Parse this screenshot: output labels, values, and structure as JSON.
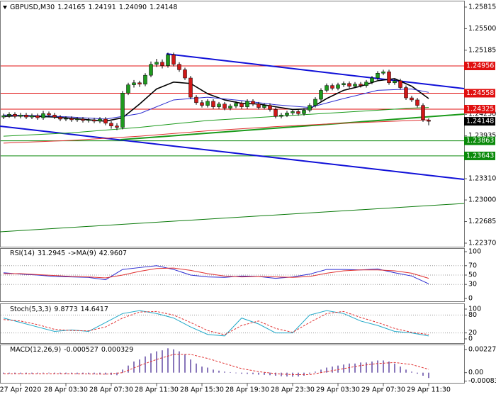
{
  "chart_data": [
    {
      "type": "candlestick",
      "title": "GBPUSD,M30",
      "last_bar_labels": [
        "1.24165",
        "1.24191",
        "1.24090",
        "1.24148"
      ],
      "categories": [
        null,
        null,
        null,
        "27 Apr 2020",
        null,
        null,
        null,
        null,
        null,
        null,
        null,
        "28 Apr 03:30",
        null,
        null,
        null,
        null,
        null,
        null,
        null,
        "28 Apr 07:30",
        null,
        null,
        null,
        null,
        null,
        null,
        null,
        "28 Apr 11:30",
        null,
        null,
        null,
        null,
        null,
        null,
        null,
        "28 Apr 15:30",
        null,
        null,
        null,
        null,
        null,
        null,
        null,
        "28 Apr 19:30",
        null,
        null,
        null,
        null,
        null,
        null,
        null,
        "28 Apr 23:30",
        null,
        null,
        null,
        null,
        null,
        null,
        null,
        "29 Apr 03:30",
        null,
        null,
        null,
        null,
        null,
        null,
        null,
        "29 Apr 07:30",
        null,
        null,
        null,
        null,
        null,
        null,
        null,
        "29 Apr 11:30"
      ],
      "open": [
        1.2421,
        1.2423,
        1.2425,
        1.2422,
        1.2424,
        1.2421,
        1.2423,
        1.242,
        1.2426,
        1.2424,
        1.2421,
        1.2418,
        1.2419,
        1.2417,
        1.2418,
        1.2416,
        1.2417,
        1.2415,
        1.2418,
        1.2412,
        1.2408,
        1.2406,
        1.2456,
        1.2468,
        1.2471,
        1.2469,
        1.2482,
        1.2498,
        1.2501,
        1.2496,
        1.2512,
        1.2498,
        1.249,
        1.2478,
        1.245,
        1.2442,
        1.2438,
        1.2444,
        1.2436,
        1.244,
        1.2434,
        1.2437,
        1.2441,
        1.2436,
        1.2444,
        1.244,
        1.2435,
        1.2438,
        1.2432,
        1.2422,
        1.2424,
        1.2427,
        1.2429,
        1.2426,
        1.2431,
        1.2438,
        1.2447,
        1.246,
        1.2467,
        1.2463,
        1.2468,
        1.247,
        1.2466,
        1.2469,
        1.2467,
        1.2472,
        1.2478,
        1.2485,
        1.2487,
        1.2471,
        1.2474,
        1.2464,
        1.2449,
        1.2446,
        1.2438,
        1.24165
      ],
      "high": [
        1.2426,
        1.2428,
        1.2428,
        1.2427,
        1.2427,
        1.2426,
        1.2426,
        1.243,
        1.2429,
        1.2427,
        1.2424,
        1.2422,
        1.2422,
        1.2421,
        1.2421,
        1.242,
        1.242,
        1.2421,
        1.2421,
        1.2415,
        1.2412,
        1.2459,
        1.2471,
        1.2475,
        1.2474,
        1.2485,
        1.2502,
        1.2506,
        1.2505,
        1.2515,
        1.2515,
        1.2501,
        1.2493,
        1.2481,
        1.2453,
        1.2446,
        1.2447,
        1.2447,
        1.2443,
        1.2443,
        1.244,
        1.2444,
        1.2444,
        1.2447,
        1.2447,
        1.2443,
        1.2441,
        1.2441,
        1.2435,
        1.2427,
        1.243,
        1.2432,
        1.2432,
        1.2434,
        1.2441,
        1.245,
        1.2463,
        1.247,
        1.247,
        1.2471,
        1.2473,
        1.2473,
        1.2472,
        1.2472,
        1.2475,
        1.2481,
        1.2488,
        1.249,
        1.249,
        1.2477,
        1.2477,
        1.2467,
        1.2452,
        1.2449,
        1.2441,
        1.24191
      ],
      "low": [
        1.2418,
        1.242,
        1.2419,
        1.2419,
        1.2418,
        1.2418,
        1.2417,
        1.2417,
        1.2421,
        1.2418,
        1.2415,
        1.2415,
        1.2414,
        1.2414,
        1.2413,
        1.2413,
        1.2412,
        1.2412,
        1.2409,
        1.2404,
        1.2402,
        1.2403,
        1.2453,
        1.2464,
        1.2465,
        1.2466,
        1.2479,
        1.2494,
        1.2492,
        1.2493,
        1.2495,
        1.2487,
        1.2475,
        1.2447,
        1.2439,
        1.2435,
        1.2435,
        1.2433,
        1.2433,
        1.2431,
        1.2431,
        1.2434,
        1.2433,
        1.2433,
        1.2437,
        1.2432,
        1.2432,
        1.2429,
        1.2419,
        1.2419,
        1.2421,
        1.2424,
        1.2423,
        1.2423,
        1.2428,
        1.2435,
        1.2444,
        1.2457,
        1.246,
        1.246,
        1.2465,
        1.2463,
        1.2463,
        1.2464,
        1.2464,
        1.2469,
        1.2475,
        1.2482,
        1.2468,
        1.2468,
        1.2461,
        1.2446,
        1.2443,
        1.2435,
        1.2414,
        1.2409
      ],
      "close": [
        1.2423,
        1.2425,
        1.2422,
        1.2424,
        1.2421,
        1.2423,
        1.242,
        1.2426,
        1.2424,
        1.2421,
        1.2418,
        1.2419,
        1.2417,
        1.2418,
        1.2416,
        1.2417,
        1.2415,
        1.2418,
        1.2412,
        1.2408,
        1.2406,
        1.2456,
        1.2468,
        1.2471,
        1.2469,
        1.2482,
        1.2498,
        1.2501,
        1.2496,
        1.2512,
        1.2498,
        1.249,
        1.2478,
        1.245,
        1.2442,
        1.2438,
        1.2444,
        1.2436,
        1.244,
        1.2434,
        1.2437,
        1.2441,
        1.2436,
        1.2444,
        1.244,
        1.2435,
        1.2438,
        1.2432,
        1.2422,
        1.2424,
        1.2427,
        1.2429,
        1.2426,
        1.2431,
        1.2438,
        1.2447,
        1.246,
        1.2467,
        1.2463,
        1.2468,
        1.247,
        1.2466,
        1.2469,
        1.2467,
        1.2472,
        1.2478,
        1.2485,
        1.2487,
        1.2471,
        1.2474,
        1.2464,
        1.2449,
        1.2446,
        1.2438,
        1.2417,
        1.24148
      ],
      "up_color": "#1e9a1e",
      "down_color": "#d01818",
      "current_color": "#000000",
      "ylim": [
        1.22318,
        1.25887
      ],
      "yticks": [
        1.25815,
        {
          "value": 1.255,
          "label": "1.25500"
        },
        1.25185,
        {
          "value": 1.2425,
          "label": "1.24250"
        },
        1.23935,
        {
          "value": 1.2331,
          "label": "1.23310"
        },
        {
          "value": 1.23,
          "label": "1.23000"
        },
        1.22685,
        {
          "value": 1.2237,
          "label": "1.22370"
        }
      ],
      "levels": [
        {
          "value": 1.24956,
          "color": "#e01010"
        },
        {
          "value": 1.24558,
          "color": "#e01010"
        },
        {
          "value": 1.24325,
          "color": "#e01010"
        },
        {
          "value": 1.23863,
          "color": "#0a8a0a"
        },
        {
          "value": 1.23643,
          "color": "#0a8a0a"
        }
      ],
      "lines": [
        {
          "color": "#000000",
          "x": [
            0,
            3,
            6,
            9,
            12,
            15,
            18,
            21,
            24,
            27,
            30,
            33,
            36,
            39,
            42,
            45,
            48,
            51,
            54,
            57,
            60,
            63,
            66,
            69,
            72,
            75
          ],
          "values": [
            1.2422,
            1.2423,
            1.2422,
            1.2421,
            1.2419,
            1.2417,
            1.2415,
            1.242,
            1.244,
            1.2462,
            1.2472,
            1.247,
            1.2455,
            1.2446,
            1.2441,
            1.244,
            1.2436,
            1.2432,
            1.2433,
            1.2448,
            1.246,
            1.2466,
            1.2474,
            1.2477,
            1.2466,
            1.2448
          ]
        },
        {
          "color": "#2a2ad0",
          "x": [
            0,
            6,
            12,
            18,
            24,
            30,
            36,
            42,
            48,
            54,
            60,
            66,
            72,
            75
          ],
          "values": [
            1.2424,
            1.2423,
            1.2421,
            1.2418,
            1.2426,
            1.2446,
            1.245,
            1.2445,
            1.2439,
            1.2435,
            1.2448,
            1.246,
            1.2462,
            1.2457
          ]
        },
        {
          "color": "#1a9a1a",
          "x": [
            0,
            12,
            24,
            36,
            48,
            60,
            72,
            75
          ],
          "values": [
            1.2393,
            1.2398,
            1.2406,
            1.2416,
            1.2422,
            1.2428,
            1.2434,
            1.2435
          ]
        },
        {
          "color": "#e03030",
          "x": [
            0,
            12,
            24,
            36,
            48,
            60,
            72,
            75
          ],
          "values": [
            1.2383,
            1.2387,
            1.2393,
            1.2401,
            1.2407,
            1.2412,
            1.2416,
            1.2417
          ]
        }
      ]
    },
    {
      "type": "line",
      "title": "RSI(14)",
      "ylim": [
        0,
        100
      ],
      "yticks": [
        0,
        30,
        50,
        70,
        100
      ],
      "grid": true,
      "series": [
        {
          "color": "#2a2ad0",
          "x": [
            0,
            3,
            6,
            9,
            12,
            15,
            18,
            21,
            24,
            27,
            30,
            33,
            36,
            39,
            42,
            45,
            48,
            51,
            54,
            57,
            60,
            63,
            66,
            69,
            72,
            75
          ],
          "values": [
            55,
            52,
            50,
            47,
            46,
            45,
            40,
            62,
            66,
            70,
            62,
            50,
            46,
            45,
            48,
            47,
            43,
            46,
            52,
            62,
            62,
            61,
            63,
            55,
            48,
            31.2945
          ]
        },
        {
          "name": "->MA(9)",
          "color": "#e03030",
          "x": [
            0,
            3,
            6,
            9,
            12,
            15,
            18,
            21,
            24,
            27,
            30,
            33,
            36,
            39,
            42,
            45,
            48,
            51,
            54,
            57,
            60,
            63,
            66,
            69,
            72,
            75
          ],
          "values": [
            53,
            53,
            51,
            49,
            47,
            46,
            44,
            50,
            58,
            64,
            65,
            60,
            53,
            48,
            46,
            47,
            46,
            45,
            47,
            54,
            59,
            61,
            61,
            59,
            54,
            42.9607
          ]
        }
      ]
    },
    {
      "type": "line",
      "title": "Stoch(5,3,3)",
      "ylim": [
        0,
        100
      ],
      "yticks": [
        0,
        20,
        80,
        100
      ],
      "grid": true,
      "series": [
        {
          "color": "#20a8c8",
          "x": [
            0,
            3,
            6,
            9,
            12,
            15,
            18,
            21,
            24,
            27,
            30,
            33,
            36,
            39,
            42,
            45,
            48,
            51,
            54,
            57,
            60,
            63,
            66,
            69,
            72,
            75
          ],
          "values": [
            70,
            55,
            40,
            25,
            30,
            25,
            55,
            85,
            95,
            85,
            70,
            40,
            15,
            10,
            70,
            50,
            20,
            20,
            80,
            95,
            85,
            60,
            45,
            25,
            20,
            9.8773
          ]
        },
        {
          "color": "#e03030",
          "dash": true,
          "x": [
            0,
            3,
            6,
            9,
            12,
            15,
            18,
            21,
            24,
            27,
            30,
            33,
            36,
            39,
            42,
            45,
            48,
            51,
            54,
            57,
            60,
            63,
            66,
            69,
            72,
            75
          ],
          "values": [
            65,
            60,
            48,
            32,
            28,
            27,
            40,
            70,
            90,
            92,
            80,
            55,
            28,
            14,
            45,
            60,
            35,
            22,
            55,
            85,
            92,
            72,
            55,
            35,
            22,
            14.6417
          ]
        }
      ]
    },
    {
      "type": "bar",
      "title": "MACD(12,26,9)",
      "color": "#3a1a8c",
      "ylim": [
        -0.001,
        0.00256
      ],
      "yticks": [
        0.002273,
        {
          "value": 0,
          "label": "0.00"
        },
        -0.00083
      ],
      "values": [
        -0.0001,
        -0.0001,
        -0.00012,
        -0.0001,
        -0.00012,
        -0.0001,
        -8e-05,
        -5e-05,
        -5e-05,
        -8e-05,
        -0.0001,
        -0.00012,
        -0.00012,
        -0.00013,
        -0.00014,
        -0.00014,
        -0.00015,
        -0.00015,
        -0.00018,
        -0.00022,
        -0.00025,
        0.0003,
        0.0007,
        0.0011,
        0.0013,
        0.0016,
        0.0019,
        0.0021,
        0.0022,
        0.0024,
        0.0023,
        0.0021,
        0.0018,
        0.0013,
        0.0009,
        0.0006,
        0.0005,
        0.0003,
        0.0002,
        0.0001,
        5e-05,
        -5e-05,
        -0.0001,
        -0.00012,
        -0.00015,
        -0.0002,
        -0.00022,
        -0.00025,
        -0.0003,
        -0.00035,
        -0.00038,
        -0.0004,
        -0.00038,
        -0.0003,
        -0.0001,
        0.0001,
        0.0003,
        0.0005,
        0.0006,
        0.0007,
        0.0008,
        0.0009,
        0.0009,
        0.001,
        0.001,
        0.0011,
        0.0012,
        0.0012,
        0.0011,
        0.0009,
        0.0006,
        0.0003,
        0.0001,
        -0.0001,
        -0.0003,
        -0.000527
      ],
      "signal": {
        "color": "#e03030",
        "x": [
          0,
          3,
          6,
          9,
          12,
          15,
          18,
          21,
          24,
          27,
          30,
          33,
          36,
          39,
          42,
          45,
          48,
          51,
          54,
          57,
          60,
          63,
          66,
          69,
          72,
          75
        ],
        "values": [
          -0.0001,
          -0.0001,
          -0.0001,
          -0.0001,
          -0.0001,
          -0.00012,
          -0.00015,
          0,
          0.0007,
          0.0013,
          0.0018,
          0.0018,
          0.0014,
          0.0009,
          0.0004,
          0.0001,
          -0.0001,
          -0.0002,
          -0.0002,
          0.0001,
          0.0004,
          0.0007,
          0.0009,
          0.001,
          0.0008,
          0.000329
        ]
      }
    }
  ]
}
